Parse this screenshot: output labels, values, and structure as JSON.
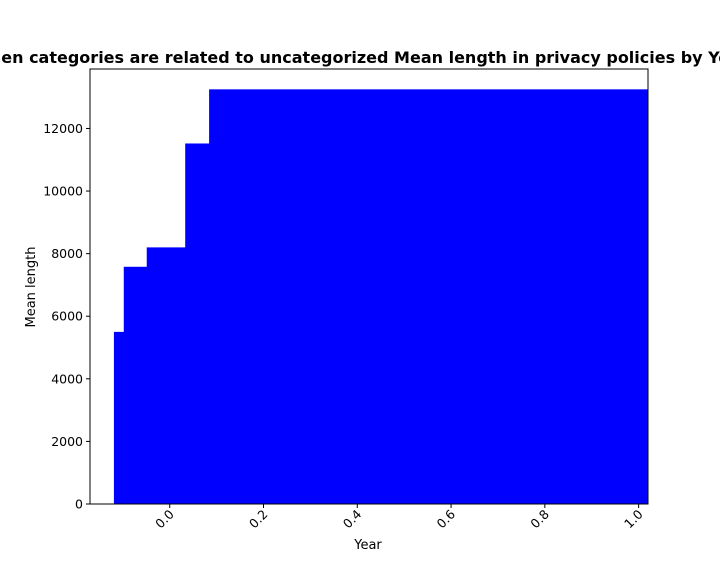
{
  "chart_data": {
    "type": "bar",
    "title": "When categories are related to uncategorized Mean length in privacy policies by Year",
    "xlabel": "Year",
    "ylabel": "Mean length",
    "xlim": [
      -0.17,
      1.02
    ],
    "ylim": [
      0,
      13900
    ],
    "xticks": [
      0.0,
      0.2,
      0.4,
      0.6,
      0.8,
      1.0
    ],
    "xtick_labels": [
      "0.0",
      "0.2",
      "0.4",
      "0.6",
      "0.8",
      "1.0"
    ],
    "yticks": [
      0,
      2000,
      4000,
      6000,
      8000,
      10000,
      12000
    ],
    "ytick_labels": [
      "0",
      "2000",
      "4000",
      "6000",
      "8000",
      "10000",
      "12000"
    ],
    "bar_color": "#0000ff",
    "bars": [
      {
        "x_start": -0.119,
        "x_end": 0.881,
        "value": 5500
      },
      {
        "x_start": -0.098,
        "x_end": 0.902,
        "value": 7580
      },
      {
        "x_start": -0.049,
        "x_end": 0.951,
        "value": 8200
      },
      {
        "x_start": 0.033,
        "x_end": 1.033,
        "value": 11520
      },
      {
        "x_start": 0.084,
        "x_end": 1.084,
        "value": 13250
      },
      {
        "x_start": -0.03,
        "x_end": 0.97,
        "value": 2500
      }
    ]
  }
}
